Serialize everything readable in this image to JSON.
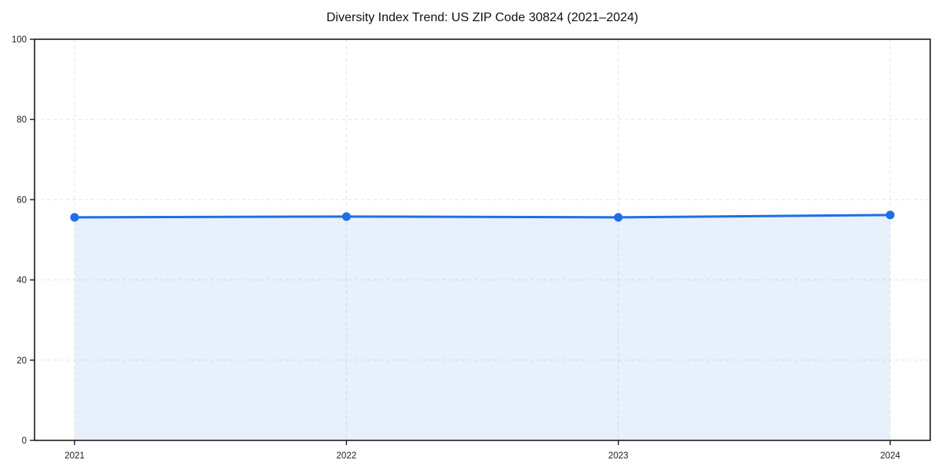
{
  "chart_data": {
    "type": "line",
    "title": "Diversity Index Trend: US ZIP Code 30824 (2021–2024)",
    "x": [
      "2021",
      "2022",
      "2023",
      "2024"
    ],
    "values": [
      55.6,
      55.8,
      55.6,
      56.2
    ],
    "xlabel": "",
    "ylabel": "",
    "ylim": [
      0,
      100
    ],
    "yticks": [
      0,
      20,
      40,
      60,
      80,
      100
    ],
    "grid": true,
    "grid_style": "dashed",
    "legend": "none",
    "area_fill": true,
    "marker": "circle",
    "colors": {
      "line": "#1e6fe6",
      "marker": "#1e6fe6",
      "area": "rgba(30,111,230,0.10)",
      "grid": "#e4e4e4",
      "spine": "#1c1c1c",
      "tick_text": "#1c1c1c",
      "title_text": "#111111",
      "background": "#ffffff"
    }
  }
}
